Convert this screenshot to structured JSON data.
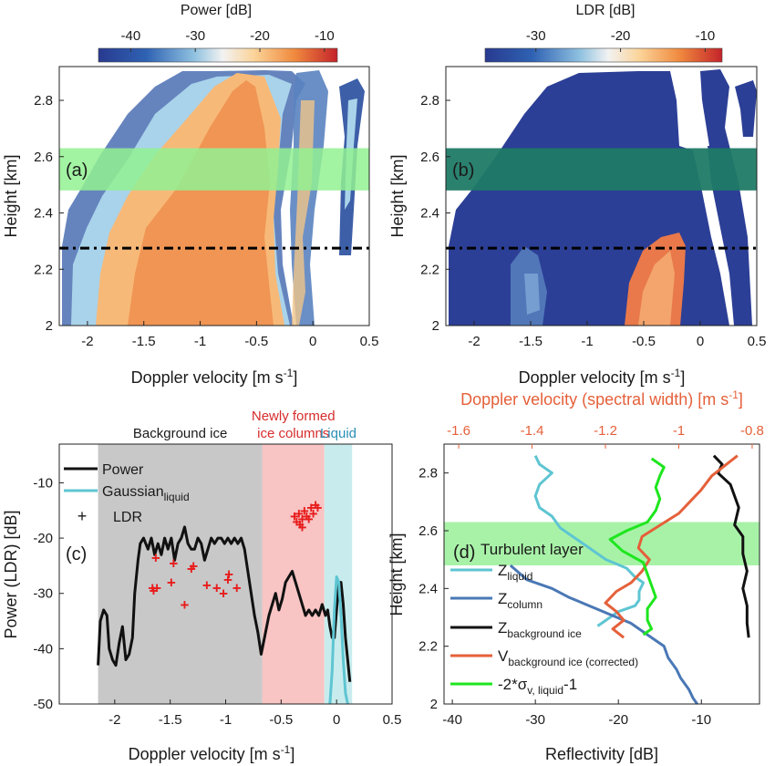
{
  "colors": {
    "accent_orange": "#e5603a",
    "liquid_cyan": "#5ec5d2",
    "column_blue": "#4a78b5",
    "bg_ice_gray": "#c8c8c8",
    "newly_pink": "#f8c4c4",
    "liquid_band": "#c8ecee",
    "turbulent_green": "#99f099",
    "ldr_cross": "#e81c1c",
    "lime": "#1ee61e"
  },
  "chart_data": [
    {
      "id": "a",
      "type": "heatmap",
      "panel_label": "(a)",
      "colorbar_title": "Power [dB]",
      "colorbar_ticks": [
        "-40",
        "-30",
        "-20",
        "-10"
      ],
      "colorbar_range": [
        -45,
        -8
      ],
      "xlabel": "Doppler velocity [m s",
      "xlabel_sup": "-1",
      "xlabel_close": "]",
      "ylabel": "Height [km]",
      "xlim": [
        -2.25,
        0.5
      ],
      "ylim": [
        2.0,
        2.92
      ],
      "xticks": [
        -2,
        -1.5,
        -1,
        -0.5,
        0,
        0.5
      ],
      "xticklabels": [
        "-2",
        "-1.5",
        "-1",
        "-0.5",
        "0",
        "0.5"
      ],
      "yticks": [
        2.0,
        2.2,
        2.4,
        2.6,
        2.8
      ],
      "yticklabels": [
        "2",
        "2.2",
        "2.4",
        "2.6",
        "2.8"
      ],
      "turbulent_band": [
        2.48,
        2.63
      ],
      "dashed_line_height": 2.275
    },
    {
      "id": "b",
      "type": "heatmap",
      "panel_label": "(b)",
      "colorbar_title": "LDR [dB]",
      "colorbar_ticks": [
        "-30",
        "-20",
        "-10"
      ],
      "colorbar_range": [
        -36,
        -8
      ],
      "xlabel": "Doppler velocity [m s",
      "xlabel_sup": "-1",
      "xlabel_close": "]",
      "ylabel": "Height [km]",
      "xlim": [
        -2.25,
        0.5
      ],
      "ylim": [
        2.0,
        2.92
      ],
      "xticks": [
        -2,
        -1.5,
        -1,
        -0.5,
        0,
        0.5
      ],
      "xticklabels": [
        "-2",
        "-1.5",
        "-1",
        "-0.5",
        "0",
        "0.5"
      ],
      "yticks": [
        2.0,
        2.2,
        2.4,
        2.6,
        2.8
      ],
      "yticklabels": [
        "2",
        "2.2",
        "2.4",
        "2.6",
        "2.8"
      ],
      "turbulent_band": [
        2.48,
        2.63
      ],
      "dashed_line_height": 2.275
    },
    {
      "id": "c",
      "type": "line",
      "panel_label": "(c)",
      "xlabel": "Doppler velocity [m s",
      "xlabel_sup": "-1",
      "xlabel_close": "]",
      "ylabel": "Power (LDR) [dB]",
      "xlim": [
        -2.5,
        0.5
      ],
      "ylim": [
        -50,
        -3
      ],
      "xticks": [
        -2,
        -1.5,
        -1,
        -0.5,
        0,
        0.5
      ],
      "xticklabels": [
        "-2",
        "-1.5",
        "-1",
        "-0.5",
        "0",
        "0.5"
      ],
      "yticks": [
        -50,
        -40,
        -30,
        -20,
        -10
      ],
      "yticklabels": [
        "-50",
        "-40",
        "-30",
        "-20",
        "-10"
      ],
      "regions": [
        {
          "label": "Background ice",
          "x": [
            -2.15,
            -0.67
          ],
          "color": "#c8c8c8",
          "text_color": "#1a1a1a"
        },
        {
          "label_lines": [
            "Newly formed",
            "ice columns"
          ],
          "x": [
            -0.67,
            -0.11
          ],
          "color": "#f8c4c4",
          "text_color": "#d62c2c"
        },
        {
          "label": "Liquid",
          "x": [
            -0.11,
            0.14
          ],
          "color": "#c8ecee",
          "text_color": "#2b8fb5"
        }
      ],
      "legend": [
        {
          "label": "Power",
          "kind": "line",
          "color": "#111111"
        },
        {
          "label": "Gaussian",
          "sub": "liquid",
          "kind": "line",
          "color": "#5ec5d2"
        },
        {
          "label": "LDR",
          "kind": "marker",
          "color": "#e81c1c"
        }
      ],
      "series": [
        {
          "name": "Power",
          "color": "#111111",
          "x": [
            -2.15,
            -2.13,
            -2.1,
            -2.07,
            -2.05,
            -2.02,
            -1.99,
            -1.96,
            -1.93,
            -1.9,
            -1.87,
            -1.84,
            -1.82,
            -1.79,
            -1.77,
            -1.74,
            -1.72,
            -1.7,
            -1.67,
            -1.64,
            -1.61,
            -1.58,
            -1.55,
            -1.52,
            -1.49,
            -1.46,
            -1.43,
            -1.4,
            -1.37,
            -1.34,
            -1.31,
            -1.28,
            -1.25,
            -1.22,
            -1.19,
            -1.16,
            -1.13,
            -1.1,
            -1.07,
            -1.04,
            -1.01,
            -0.98,
            -0.95,
            -0.92,
            -0.89,
            -0.86,
            -0.83,
            -0.8,
            -0.77,
            -0.74,
            -0.71,
            -0.68,
            -0.66,
            -0.64,
            -0.61,
            -0.58,
            -0.55,
            -0.52,
            -0.49,
            -0.46,
            -0.43,
            -0.4,
            -0.37,
            -0.34,
            -0.31,
            -0.28,
            -0.25,
            -0.22,
            -0.19,
            -0.16,
            -0.13,
            -0.1,
            -0.08,
            -0.06,
            -0.04,
            -0.02,
            0.0,
            0.02,
            0.04,
            0.06,
            0.08,
            0.1,
            0.12
          ],
          "y": [
            -43,
            -35,
            -33,
            -34,
            -40,
            -42,
            -43,
            -39,
            -36,
            -42,
            -41,
            -38,
            -30,
            -24,
            -21,
            -20,
            -21,
            -22,
            -20,
            -23,
            -21,
            -23,
            -20,
            -22,
            -20,
            -24,
            -21,
            -20,
            -18,
            -21,
            -22,
            -22,
            -20,
            -21,
            -24,
            -22,
            -20,
            -21,
            -20,
            -20,
            -21,
            -20,
            -21,
            -20,
            -21,
            -20,
            -22,
            -26,
            -30,
            -34,
            -37,
            -41,
            -39,
            -37,
            -34,
            -32,
            -30,
            -33,
            -31,
            -28,
            -27,
            -26,
            -28,
            -30,
            -32,
            -34,
            -33,
            -34,
            -33,
            -34,
            -32,
            -34,
            -33,
            -36,
            -38,
            -38,
            -33,
            -28,
            -28,
            -32,
            -38,
            -42,
            -46
          ]
        },
        {
          "name": "Gaussian",
          "color": "#5ec5d2",
          "x": [
            -0.06,
            -0.04,
            -0.02,
            0.0,
            0.02,
            0.04,
            0.06,
            0.08,
            0.1
          ],
          "y": [
            -50,
            -44,
            -33,
            -27,
            -28,
            -34,
            -42,
            -48,
            -50
          ]
        },
        {
          "name": "LDR",
          "color": "#e81c1c",
          "kind": "scatter",
          "points": [
            [
              -1.63,
              -23.5
            ],
            [
              -1.66,
              -29
            ],
            [
              -1.62,
              -29
            ],
            [
              -1.65,
              -29.5
            ],
            [
              -1.49,
              -28
            ],
            [
              -1.47,
              -24.5
            ],
            [
              -1.37,
              -32
            ],
            [
              -1.31,
              -25.5
            ],
            [
              -1.29,
              -25
            ],
            [
              -1.17,
              -28.5
            ],
            [
              -1.08,
              -29
            ],
            [
              -1.02,
              -30
            ],
            [
              -0.98,
              -27.5
            ],
            [
              -0.97,
              -26.5
            ],
            [
              -0.9,
              -29
            ],
            [
              -0.38,
              -16
            ],
            [
              -0.36,
              -17
            ],
            [
              -0.34,
              -15.5
            ],
            [
              -0.33,
              -17.5
            ],
            [
              -0.31,
              -16.5
            ],
            [
              -0.29,
              -15
            ],
            [
              -0.27,
              -16
            ],
            [
              -0.25,
              -16.5
            ],
            [
              -0.23,
              -14.5
            ],
            [
              -0.21,
              -15.5
            ],
            [
              -0.19,
              -14
            ],
            [
              -0.17,
              -14.5
            ],
            [
              -0.31,
              -18
            ]
          ]
        }
      ]
    },
    {
      "id": "d",
      "type": "line",
      "panel_label": "(d)",
      "band_label": "Turbulent layer",
      "xlabel": "Reflectivity [dB]",
      "ylabel": "Height [km]",
      "top_xlabel": "Doppler velocity (spectral width) [m s",
      "top_xlabel_sup": "-1",
      "top_xlabel_close": "]",
      "xlim": [
        -41,
        -3
      ],
      "ylim": [
        2.0,
        2.9
      ],
      "top_xlim": [
        -1.64,
        -0.78
      ],
      "xticks": [
        -40,
        -30,
        -20,
        -10
      ],
      "xticklabels": [
        "-40",
        "-30",
        "-20",
        "-10"
      ],
      "top_xticks": [
        -1.6,
        -1.4,
        -1.2,
        -1.0,
        -0.8
      ],
      "top_xticklabels": [
        "-1.6",
        "-1.4",
        "-1.2",
        "-1",
        "-0.8"
      ],
      "yticks": [
        2.0,
        2.2,
        2.4,
        2.6,
        2.8
      ],
      "yticklabels": [
        "2",
        "2.2",
        "2.4",
        "2.6",
        "2.8"
      ],
      "turbulent_band": [
        2.48,
        2.63
      ],
      "legend": [
        {
          "label": "Z",
          "sub": "liquid",
          "color": "#5ec5d2"
        },
        {
          "label": "Z",
          "sub": "column",
          "color": "#4a78b5"
        },
        {
          "label": "Z",
          "sub": "background ice",
          "color": "#111111"
        },
        {
          "label": "V",
          "sub": "background ice (corrected)",
          "color": "#e5603a"
        },
        {
          "label": "-2*σ",
          "sub": "v, liquid",
          "tail": "-1",
          "color": "#1ee61e"
        }
      ],
      "series": [
        {
          "name": "Z liquid",
          "color": "#5ec5d2",
          "axis": "bottom",
          "x": [
            -30,
            -29.5,
            -28,
            -29.5,
            -30,
            -29.5,
            -28,
            -27,
            -25.5,
            -24.5,
            -23,
            -21.5,
            -19,
            -18,
            -17,
            -17.5,
            -17.5,
            -18,
            -20,
            -21,
            -22,
            -22.5
          ],
          "y": [
            2.86,
            2.83,
            2.8,
            2.76,
            2.72,
            2.68,
            2.65,
            2.61,
            2.58,
            2.56,
            2.53,
            2.5,
            2.47,
            2.44,
            2.42,
            2.39,
            2.36,
            2.34,
            2.32,
            2.3,
            2.28,
            2.27
          ]
        },
        {
          "name": "Z column",
          "color": "#4a78b5",
          "axis": "bottom",
          "x": [
            -33,
            -31,
            -28,
            -26,
            -23.5,
            -21,
            -18.5,
            -17,
            -15.5,
            -14.5,
            -14,
            -13,
            -12.5,
            -11.5,
            -11,
            -10.5
          ],
          "y": [
            2.48,
            2.43,
            2.4,
            2.37,
            2.34,
            2.31,
            2.28,
            2.25,
            2.22,
            2.2,
            2.16,
            2.12,
            2.09,
            2.05,
            2.02,
            2.0
          ]
        },
        {
          "name": "Z background ice",
          "color": "#111111",
          "axis": "bottom",
          "x": [
            -8.5,
            -7.5,
            -8,
            -6.5,
            -6,
            -5.5,
            -6,
            -5,
            -5,
            -4.5,
            -5,
            -4.5,
            -4.5,
            -4.3
          ],
          "y": [
            2.86,
            2.83,
            2.8,
            2.76,
            2.72,
            2.68,
            2.62,
            2.58,
            2.52,
            2.46,
            2.4,
            2.34,
            2.28,
            2.23
          ]
        },
        {
          "name": "V background ice (corrected)",
          "color": "#e5603a",
          "axis": "top",
          "x": [
            -0.84,
            -0.87,
            -0.91,
            -0.94,
            -0.97,
            -1.0,
            -1.05,
            -1.1,
            -1.11,
            -1.08,
            -1.1,
            -1.13,
            -1.17,
            -1.2,
            -1.17,
            -1.15,
            -1.18,
            -1.15
          ],
          "y": [
            2.86,
            2.83,
            2.79,
            2.74,
            2.7,
            2.66,
            2.62,
            2.58,
            2.54,
            2.5,
            2.46,
            2.42,
            2.39,
            2.35,
            2.32,
            2.29,
            2.26,
            2.23
          ]
        },
        {
          "name": "-2*sigma v liquid -1",
          "color": "#1ee61e",
          "axis": "bottom",
          "x": [
            -16,
            -14.5,
            -15,
            -15.5,
            -15,
            -15.5,
            -16.5,
            -19,
            -21,
            -19.5,
            -17,
            -16.5,
            -16,
            -15.5,
            -16.5,
            -16.5,
            -16,
            -17
          ],
          "y": [
            2.85,
            2.82,
            2.79,
            2.75,
            2.71,
            2.67,
            2.63,
            2.6,
            2.57,
            2.53,
            2.49,
            2.45,
            2.41,
            2.37,
            2.33,
            2.29,
            2.26,
            2.24
          ]
        }
      ]
    }
  ]
}
